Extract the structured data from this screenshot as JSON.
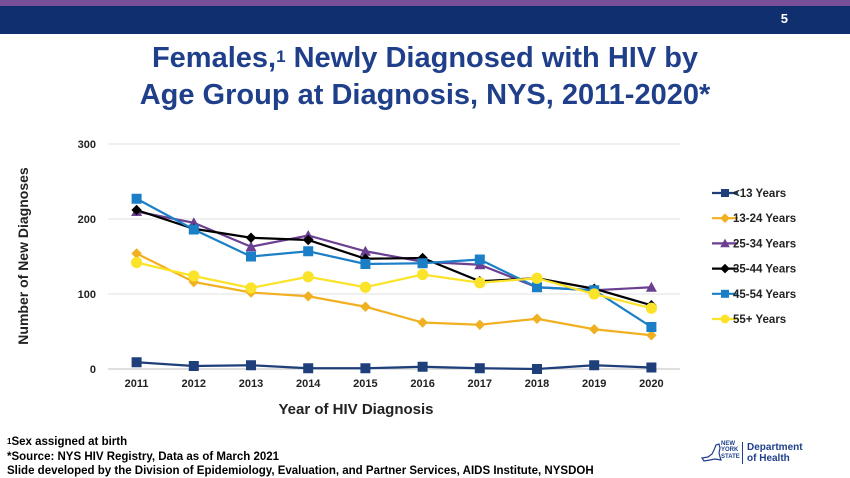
{
  "header": {
    "slide_number": "5"
  },
  "title": {
    "line1_a": "Females,",
    "line1_sup": "1",
    "line1_b": " Newly Diagnosed with HIV by",
    "line2": "Age Group at Diagnosis, NYS, 2011-2020*"
  },
  "chart_data": {
    "type": "line",
    "xlabel": "Year of HIV Diagnosis",
    "ylabel": "Number of New Diagnoses",
    "x": [
      2011,
      2012,
      2013,
      2014,
      2015,
      2016,
      2017,
      2018,
      2019,
      2020
    ],
    "ylim": [
      0,
      300
    ],
    "yticks": [
      0,
      100,
      200,
      300
    ],
    "grid": true,
    "legend": "right",
    "series": [
      {
        "name": "<13 Years",
        "color": "#1f3f7a",
        "marker": "square",
        "values": [
          9,
          4,
          5,
          1,
          1,
          3,
          1,
          0,
          5,
          2
        ]
      },
      {
        "name": "13-24 Years",
        "color": "#f0b020",
        "marker": "diamond",
        "values": [
          154,
          116,
          102,
          97,
          83,
          62,
          59,
          67,
          53,
          45
        ]
      },
      {
        "name": "25-34 Years",
        "color": "#6b3f91",
        "marker": "triangle",
        "values": [
          210,
          195,
          163,
          178,
          157,
          143,
          139,
          109,
          105,
          109
        ]
      },
      {
        "name": "35-44 Years",
        "color": "#000000",
        "marker": "diamond",
        "values": [
          212,
          187,
          175,
          172,
          147,
          148,
          117,
          121,
          107,
          85
        ]
      },
      {
        "name": "45-54 Years",
        "color": "#1a7fc6",
        "marker": "square",
        "values": [
          227,
          186,
          150,
          157,
          140,
          141,
          146,
          109,
          105,
          56
        ]
      },
      {
        "name": "55+ Years",
        "color": "#fbe32a",
        "marker": "circle",
        "values": [
          142,
          124,
          108,
          123,
          109,
          126,
          115,
          121,
          100,
          81
        ]
      }
    ]
  },
  "footnotes": {
    "line1_sup": "1",
    "line1": "Sex assigned at birth",
    "line2": "*Source: NYS HIV Registry, Data as of March 2021",
    "line3": "Slide developed by the Division of Epidemiology, Evaluation, and Partner Services, AIDS Institute, NYSDOH"
  },
  "logo": {
    "ny_line1": "NEW",
    "ny_line2": "YORK",
    "ny_line3": "STATE",
    "dept_line1": "Department",
    "dept_line2": "of Health"
  }
}
